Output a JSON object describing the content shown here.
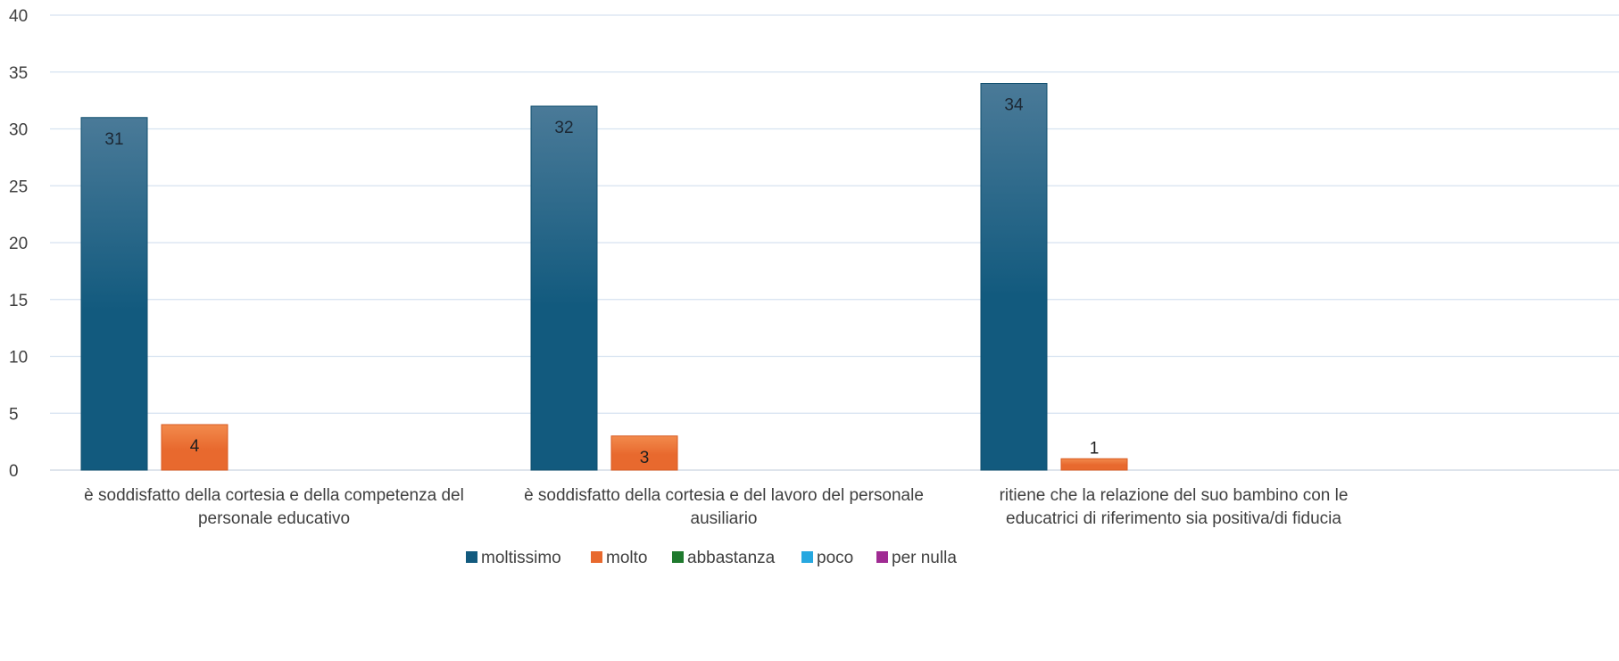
{
  "chart_data": {
    "type": "bar",
    "title": "",
    "xlabel": "",
    "ylabel": "",
    "ylim": [
      0,
      40
    ],
    "ytick_step": 5,
    "grid": true,
    "legend_position": "bottom",
    "categories": [
      [
        "è soddisfatto della cortesia e della competenza del",
        "personale educativo"
      ],
      [
        "è soddisfatto della cortesia e del lavoro del personale",
        "ausiliario"
      ],
      [
        "ritiene che la relazione del suo bambino con le",
        "educatrici di riferimento sia positiva/di fiducia"
      ]
    ],
    "series": [
      {
        "name": "moltissimo",
        "values": [
          31,
          32,
          34
        ],
        "color": "#125A7E",
        "color_top": "#4A7A98"
      },
      {
        "name": "molto",
        "values": [
          4,
          3,
          1
        ],
        "color": "#E8692E",
        "color_top": "#F28A4C"
      },
      {
        "name": "abbastanza",
        "values": [
          0,
          0,
          0
        ],
        "color": "#1F7A2E"
      },
      {
        "name": "poco",
        "values": [
          0,
          0,
          0
        ],
        "color": "#27A8E0"
      },
      {
        "name": "per nulla",
        "values": [
          0,
          0,
          0
        ],
        "color": "#A02B93"
      }
    ],
    "data_labels": [
      [
        "31",
        "32",
        "34"
      ],
      [
        "4",
        "3",
        "1"
      ]
    ]
  }
}
